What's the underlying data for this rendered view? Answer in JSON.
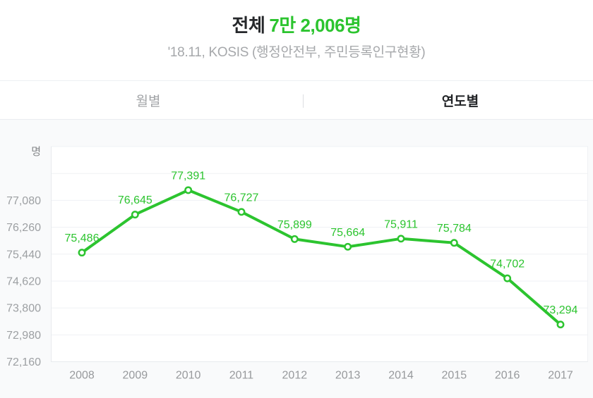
{
  "header": {
    "title_prefix": "전체",
    "title_value": "7만 2,006명",
    "subtitle": "'18.11, KOSIS (행정안전부, 주민등록인구현황)"
  },
  "tabs": [
    {
      "label": "월별",
      "active": false
    },
    {
      "label": "연도별",
      "active": true
    }
  ],
  "colors": {
    "accent_green": "#2cc42f",
    "title_dark": "#26282b",
    "axis_label_gray": "#9da0a3",
    "gridline": "#eff1f4",
    "axis_line": "#e7eaed",
    "plot_background": "#ffffff",
    "section_background": "#f9fafb"
  },
  "chart_data": {
    "type": "line",
    "title": "전체 7만 2,006명",
    "xlabel": "",
    "ylabel": "명",
    "categories": [
      "2008",
      "2009",
      "2010",
      "2011",
      "2012",
      "2013",
      "2014",
      "2015",
      "2016",
      "2017"
    ],
    "values": [
      75486,
      76645,
      77391,
      76727,
      75899,
      75664,
      75911,
      75784,
      74702,
      73294
    ],
    "value_labels": [
      "75,486",
      "76,645",
      "77,391",
      "76,727",
      "75,899",
      "75,664",
      "75,911",
      "75,784",
      "74,702",
      "73,294"
    ],
    "ylim": [
      72160,
      78720
    ],
    "ytick_step": 820,
    "yticks_labeled": [
      77080,
      76260,
      75440,
      74620,
      73800,
      72980,
      72160
    ],
    "ytick_labels": [
      "77,080",
      "76,260",
      "75,440",
      "74,620",
      "73,800",
      "72,980",
      "72,160"
    ],
    "grid": true,
    "legend": false,
    "marker": "open-circle",
    "line_color": "#2cc42f"
  }
}
